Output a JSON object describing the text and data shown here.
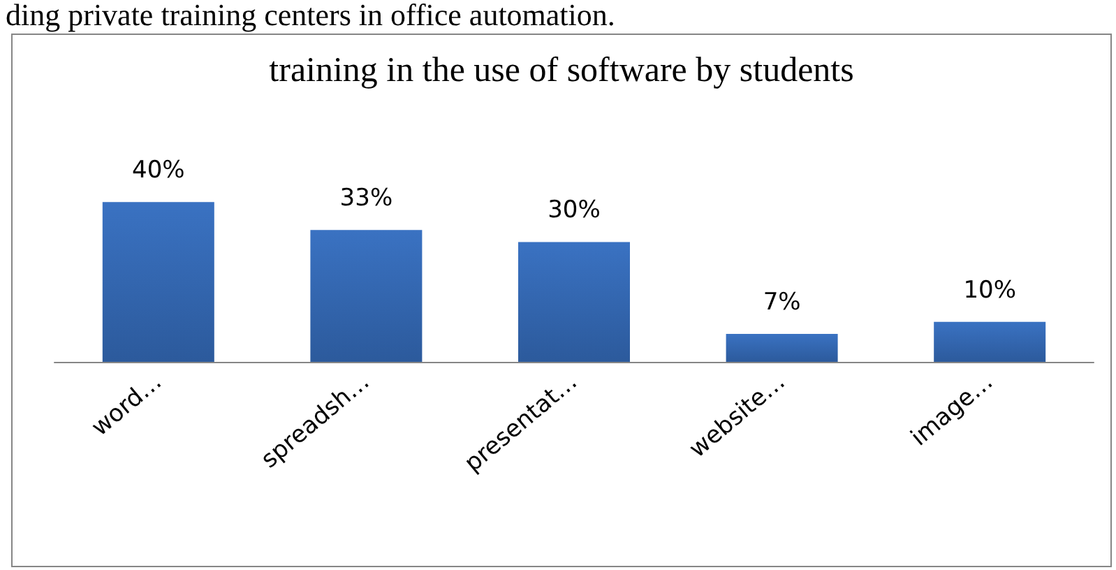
{
  "chart_data": {
    "type": "bar",
    "title": "training in the use of software by students",
    "categories": [
      "word…",
      "spreadsh…",
      "presentat…",
      "website…",
      "image…"
    ],
    "values": [
      40,
      33,
      30,
      7,
      10
    ],
    "value_labels": [
      "40%",
      "33%",
      "30%",
      "7%",
      "10%"
    ],
    "color": "#3a72c2",
    "annotations": [
      "ding private training centers in office automation."
    ]
  }
}
